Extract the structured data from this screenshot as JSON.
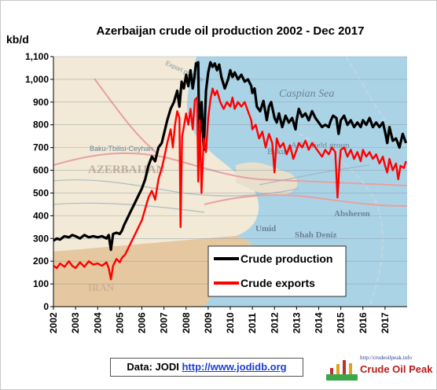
{
  "chart_data": {
    "type": "line",
    "title": "Azerbaijan crude oil production 2002 - Dec 2017",
    "ylabel": "kb/d",
    "ylim": [
      0,
      1100
    ],
    "xlim": [
      2002,
      2018
    ],
    "y_ticks": [
      "0",
      "100",
      "200",
      "300",
      "400",
      "500",
      "600",
      "700",
      "800",
      "900",
      "1,000",
      "1,100"
    ],
    "x_ticks": [
      "2002",
      "2003",
      "2004",
      "2005",
      "2006",
      "2007",
      "2008",
      "2009",
      "2010",
      "2011",
      "2012",
      "2013",
      "2014",
      "2015",
      "2016",
      "2017"
    ],
    "legend_position": "center",
    "series": [
      {
        "name": "Crude production",
        "color": "#000000",
        "points": [
          [
            2002.0,
            290
          ],
          [
            2002.15,
            300
          ],
          [
            2002.3,
            295
          ],
          [
            2002.5,
            310
          ],
          [
            2002.7,
            305
          ],
          [
            2002.85,
            315
          ],
          [
            2003.0,
            310
          ],
          [
            2003.2,
            300
          ],
          [
            2003.4,
            315
          ],
          [
            2003.6,
            305
          ],
          [
            2003.8,
            310
          ],
          [
            2004.0,
            305
          ],
          [
            2004.2,
            310
          ],
          [
            2004.4,
            300
          ],
          [
            2004.5,
            315
          ],
          [
            2004.6,
            250
          ],
          [
            2004.7,
            320
          ],
          [
            2004.85,
            325
          ],
          [
            2005.0,
            320
          ],
          [
            2005.1,
            335
          ],
          [
            2005.2,
            360
          ],
          [
            2005.35,
            390
          ],
          [
            2005.5,
            420
          ],
          [
            2005.65,
            450
          ],
          [
            2005.8,
            480
          ],
          [
            2005.9,
            500
          ],
          [
            2006.0,
            520
          ],
          [
            2006.15,
            560
          ],
          [
            2006.3,
            620
          ],
          [
            2006.45,
            660
          ],
          [
            2006.6,
            640
          ],
          [
            2006.75,
            700
          ],
          [
            2006.9,
            720
          ],
          [
            2007.0,
            760
          ],
          [
            2007.15,
            820
          ],
          [
            2007.3,
            870
          ],
          [
            2007.45,
            900
          ],
          [
            2007.6,
            950
          ],
          [
            2007.7,
            880
          ],
          [
            2007.8,
            990
          ],
          [
            2007.9,
            960
          ],
          [
            2008.0,
            1020
          ],
          [
            2008.1,
            970
          ],
          [
            2008.2,
            1040
          ],
          [
            2008.3,
            960
          ],
          [
            2008.38,
            1010
          ],
          [
            2008.45,
            1070
          ],
          [
            2008.55,
            1075
          ],
          [
            2008.6,
            700
          ],
          [
            2008.7,
            900
          ],
          [
            2008.8,
            690
          ],
          [
            2008.9,
            950
          ],
          [
            2009.0,
            1030
          ],
          [
            2009.1,
            1075
          ],
          [
            2009.2,
            1055
          ],
          [
            2009.3,
            1070
          ],
          [
            2009.4,
            1040
          ],
          [
            2009.5,
            1065
          ],
          [
            2009.6,
            1010
          ],
          [
            2009.75,
            960
          ],
          [
            2009.9,
            1000
          ],
          [
            2010.0,
            1040
          ],
          [
            2010.1,
            1010
          ],
          [
            2010.2,
            1030
          ],
          [
            2010.35,
            1000
          ],
          [
            2010.5,
            1020
          ],
          [
            2010.65,
            990
          ],
          [
            2010.8,
            1000
          ],
          [
            2010.95,
            970
          ],
          [
            2011.0,
            940
          ],
          [
            2011.1,
            960
          ],
          [
            2011.2,
            880
          ],
          [
            2011.35,
            860
          ],
          [
            2011.5,
            905
          ],
          [
            2011.65,
            820
          ],
          [
            2011.75,
            880
          ],
          [
            2011.85,
            900
          ],
          [
            2012.0,
            830
          ],
          [
            2012.1,
            810
          ],
          [
            2012.2,
            850
          ],
          [
            2012.35,
            790
          ],
          [
            2012.5,
            840
          ],
          [
            2012.65,
            810
          ],
          [
            2012.8,
            830
          ],
          [
            2012.95,
            780
          ],
          [
            2013.0,
            820
          ],
          [
            2013.1,
            870
          ],
          [
            2013.25,
            835
          ],
          [
            2013.4,
            850
          ],
          [
            2013.55,
            820
          ],
          [
            2013.7,
            860
          ],
          [
            2013.85,
            830
          ],
          [
            2014.0,
            810
          ],
          [
            2014.15,
            790
          ],
          [
            2014.3,
            800
          ],
          [
            2014.45,
            790
          ],
          [
            2014.55,
            820
          ],
          [
            2014.65,
            840
          ],
          [
            2014.8,
            830
          ],
          [
            2014.9,
            760
          ],
          [
            2015.0,
            820
          ],
          [
            2015.15,
            840
          ],
          [
            2015.3,
            800
          ],
          [
            2015.45,
            820
          ],
          [
            2015.6,
            790
          ],
          [
            2015.75,
            810
          ],
          [
            2015.9,
            790
          ],
          [
            2016.0,
            820
          ],
          [
            2016.15,
            800
          ],
          [
            2016.3,
            830
          ],
          [
            2016.45,
            790
          ],
          [
            2016.6,
            810
          ],
          [
            2016.75,
            790
          ],
          [
            2016.9,
            810
          ],
          [
            2017.0,
            770
          ],
          [
            2017.1,
            720
          ],
          [
            2017.2,
            790
          ],
          [
            2017.35,
            730
          ],
          [
            2017.5,
            740
          ],
          [
            2017.65,
            700
          ],
          [
            2017.8,
            760
          ],
          [
            2017.95,
            720
          ]
        ]
      },
      {
        "name": "Crude exports",
        "color": "#ff0000",
        "points": [
          [
            2002.0,
            180
          ],
          [
            2002.15,
            170
          ],
          [
            2002.3,
            190
          ],
          [
            2002.5,
            175
          ],
          [
            2002.7,
            200
          ],
          [
            2002.85,
            180
          ],
          [
            2003.0,
            170
          ],
          [
            2003.2,
            195
          ],
          [
            2003.4,
            175
          ],
          [
            2003.6,
            200
          ],
          [
            2003.8,
            185
          ],
          [
            2004.0,
            190
          ],
          [
            2004.2,
            180
          ],
          [
            2004.4,
            195
          ],
          [
            2004.5,
            170
          ],
          [
            2004.6,
            120
          ],
          [
            2004.7,
            180
          ],
          [
            2004.85,
            210
          ],
          [
            2005.0,
            195
          ],
          [
            2005.1,
            215
          ],
          [
            2005.25,
            230
          ],
          [
            2005.4,
            260
          ],
          [
            2005.55,
            290
          ],
          [
            2005.7,
            320
          ],
          [
            2005.85,
            350
          ],
          [
            2006.0,
            380
          ],
          [
            2006.15,
            430
          ],
          [
            2006.3,
            480
          ],
          [
            2006.45,
            510
          ],
          [
            2006.6,
            470
          ],
          [
            2006.75,
            560
          ],
          [
            2006.9,
            610
          ],
          [
            2007.0,
            650
          ],
          [
            2007.15,
            720
          ],
          [
            2007.3,
            780
          ],
          [
            2007.4,
            700
          ],
          [
            2007.5,
            800
          ],
          [
            2007.6,
            860
          ],
          [
            2007.7,
            830
          ],
          [
            2007.75,
            350
          ],
          [
            2007.82,
            750
          ],
          [
            2007.9,
            790
          ],
          [
            2008.0,
            850
          ],
          [
            2008.1,
            800
          ],
          [
            2008.2,
            870
          ],
          [
            2008.3,
            780
          ],
          [
            2008.4,
            910
          ],
          [
            2008.5,
            920
          ],
          [
            2008.55,
            550
          ],
          [
            2008.62,
            820
          ],
          [
            2008.7,
            500
          ],
          [
            2008.8,
            740
          ],
          [
            2008.9,
            680
          ],
          [
            2009.0,
            830
          ],
          [
            2009.1,
            910
          ],
          [
            2009.2,
            960
          ],
          [
            2009.3,
            930
          ],
          [
            2009.4,
            950
          ],
          [
            2009.55,
            900
          ],
          [
            2009.7,
            870
          ],
          [
            2009.85,
            900
          ],
          [
            2010.0,
            880
          ],
          [
            2010.1,
            920
          ],
          [
            2010.2,
            870
          ],
          [
            2010.35,
            900
          ],
          [
            2010.5,
            880
          ],
          [
            2010.65,
            900
          ],
          [
            2010.8,
            860
          ],
          [
            2010.95,
            820
          ],
          [
            2011.0,
            780
          ],
          [
            2011.15,
            800
          ],
          [
            2011.3,
            740
          ],
          [
            2011.45,
            770
          ],
          [
            2011.6,
            700
          ],
          [
            2011.75,
            760
          ],
          [
            2011.9,
            720
          ],
          [
            2012.0,
            590
          ],
          [
            2012.1,
            740
          ],
          [
            2012.25,
            700
          ],
          [
            2012.4,
            720
          ],
          [
            2012.55,
            670
          ],
          [
            2012.7,
            710
          ],
          [
            2012.85,
            650
          ],
          [
            2013.0,
            690
          ],
          [
            2013.1,
            720
          ],
          [
            2013.25,
            700
          ],
          [
            2013.4,
            730
          ],
          [
            2013.55,
            690
          ],
          [
            2013.7,
            720
          ],
          [
            2013.85,
            700
          ],
          [
            2014.0,
            680
          ],
          [
            2014.15,
            660
          ],
          [
            2014.3,
            690
          ],
          [
            2014.45,
            670
          ],
          [
            2014.6,
            700
          ],
          [
            2014.75,
            680
          ],
          [
            2014.85,
            480
          ],
          [
            2014.95,
            640
          ],
          [
            2015.0,
            690
          ],
          [
            2015.15,
            700
          ],
          [
            2015.3,
            660
          ],
          [
            2015.45,
            690
          ],
          [
            2015.6,
            650
          ],
          [
            2015.75,
            680
          ],
          [
            2015.9,
            640
          ],
          [
            2016.0,
            690
          ],
          [
            2016.15,
            660
          ],
          [
            2016.3,
            680
          ],
          [
            2016.45,
            650
          ],
          [
            2016.6,
            670
          ],
          [
            2016.75,
            630
          ],
          [
            2016.9,
            660
          ],
          [
            2017.0,
            620
          ],
          [
            2017.1,
            590
          ],
          [
            2017.2,
            650
          ],
          [
            2017.35,
            600
          ],
          [
            2017.5,
            630
          ],
          [
            2017.6,
            560
          ],
          [
            2017.7,
            620
          ],
          [
            2017.85,
            610
          ],
          [
            2017.95,
            640
          ]
        ]
      }
    ]
  },
  "map_labels": [
    "Caspian Sea",
    "AZERBAIJAN",
    "IRAN",
    "Baku-Tbilisi-Ceyhan",
    "Export pipeline",
    "Baku",
    "ACG field group",
    "Absheron",
    "Umid",
    "Shah Deniz"
  ],
  "footer": {
    "source_prefix": "Data: JODI",
    "source_link": "http://www.jodidb.org"
  },
  "logo": {
    "url": "http://crudeoilpeak.info",
    "name": "Crude Oil Peak"
  }
}
